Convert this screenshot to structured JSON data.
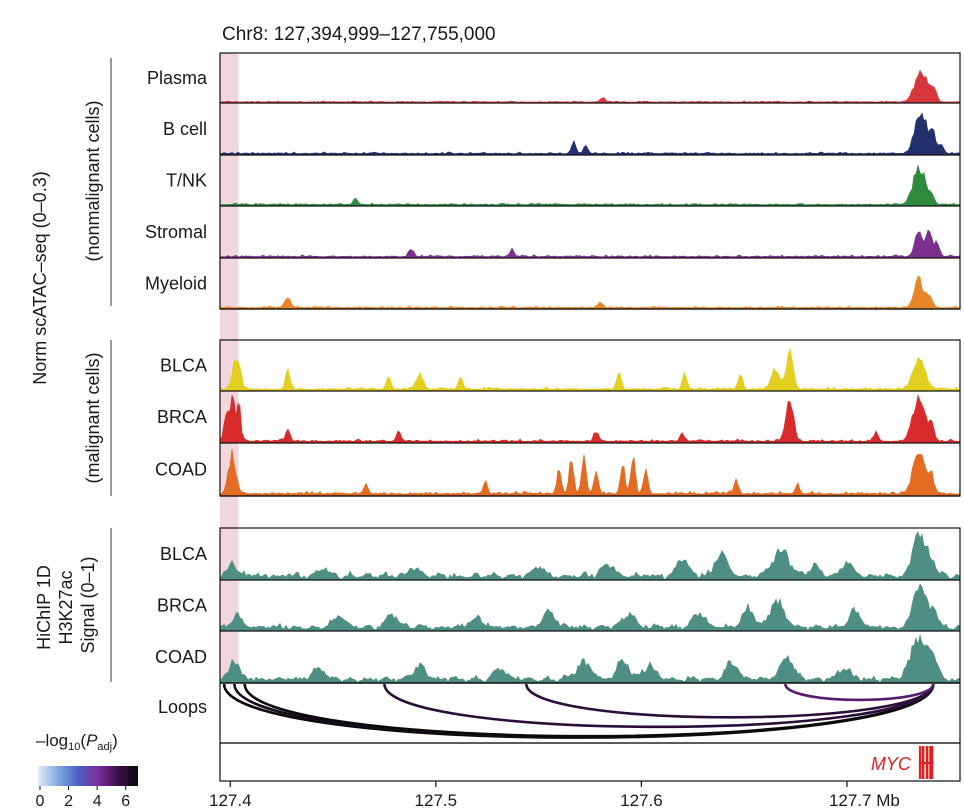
{
  "chart_data": {
    "type": "genome-browser-tracks",
    "title": "Chr8: 127,394,999–127,755,000",
    "region": {
      "chrom": "Chr8",
      "start": 127394999,
      "end": 127755000
    },
    "highlight_region": [
      127394999,
      127404000
    ],
    "x_axis": {
      "ticks": [
        127.4,
        127.5,
        127.6,
        127.7
      ],
      "tick_labels": [
        "127.4",
        "127.5",
        "127.6",
        "127.7 Mb"
      ]
    },
    "groups": [
      {
        "id": "nonmalignant",
        "label": "(nonmalignant cells)"
      },
      {
        "id": "malignant",
        "label": "(malignant cells)"
      },
      {
        "id": "hichip",
        "label_lines": [
          "HiChIP 1D",
          "H3K27ac",
          "Signal (0–1)"
        ]
      }
    ],
    "outer_ylabel": "Norm scATAC–seq (0–0.3)",
    "tracks": [
      {
        "name": "Plasma",
        "group": "nonmalignant",
        "color": "#d7373c",
        "ylim": [
          0,
          0.3
        ],
        "baseline": 0.006,
        "noise": 0.004,
        "peaks": [
          {
            "pos": 127.581,
            "height": 0.03,
            "width": 0.0015
          },
          {
            "pos": 127.736,
            "height": 0.22,
            "width": 0.004
          },
          {
            "pos": 127.742,
            "height": 0.09,
            "width": 0.002
          }
        ]
      },
      {
        "name": "B cell",
        "group": "nonmalignant",
        "color": "#23306e",
        "ylim": [
          0,
          0.3
        ],
        "baseline": 0.008,
        "noise": 0.006,
        "peaks": [
          {
            "pos": 127.567,
            "height": 0.07,
            "width": 0.0015
          },
          {
            "pos": 127.573,
            "height": 0.05,
            "width": 0.0015
          },
          {
            "pos": 127.736,
            "height": 0.25,
            "width": 0.004
          },
          {
            "pos": 127.742,
            "height": 0.12,
            "width": 0.002
          },
          {
            "pos": 127.746,
            "height": 0.05,
            "width": 0.0015
          }
        ]
      },
      {
        "name": "T/NK",
        "group": "nonmalignant",
        "color": "#2e8b3e",
        "ylim": [
          0,
          0.3
        ],
        "baseline": 0.008,
        "noise": 0.006,
        "peaks": [
          {
            "pos": 127.461,
            "height": 0.04,
            "width": 0.0015
          },
          {
            "pos": 127.735,
            "height": 0.24,
            "width": 0.004
          },
          {
            "pos": 127.741,
            "height": 0.06,
            "width": 0.002
          }
        ]
      },
      {
        "name": "Stromal",
        "group": "nonmalignant",
        "color": "#7b2f8e",
        "ylim": [
          0,
          0.3
        ],
        "baseline": 0.008,
        "noise": 0.007,
        "peaks": [
          {
            "pos": 127.488,
            "height": 0.05,
            "width": 0.0015
          },
          {
            "pos": 127.537,
            "height": 0.04,
            "width": 0.0015
          },
          {
            "pos": 127.735,
            "height": 0.18,
            "width": 0.0025
          },
          {
            "pos": 127.74,
            "height": 0.16,
            "width": 0.002
          },
          {
            "pos": 127.744,
            "height": 0.08,
            "width": 0.0015
          }
        ]
      },
      {
        "name": "Myeloid",
        "group": "nonmalignant",
        "color": "#e8872a",
        "ylim": [
          0,
          0.3
        ],
        "baseline": 0.008,
        "noise": 0.006,
        "peaks": [
          {
            "pos": 127.428,
            "height": 0.06,
            "width": 0.002
          },
          {
            "pos": 127.58,
            "height": 0.04,
            "width": 0.0015
          },
          {
            "pos": 127.735,
            "height": 0.19,
            "width": 0.003
          },
          {
            "pos": 127.74,
            "height": 0.08,
            "width": 0.002
          }
        ]
      },
      {
        "name": "BLCA",
        "group": "malignant",
        "color": "#e3cf1f",
        "ylim": [
          0,
          0.3
        ],
        "baseline": 0.01,
        "noise": 0.008,
        "peaks": [
          {
            "pos": 127.403,
            "height": 0.22,
            "width": 0.0025
          },
          {
            "pos": 127.428,
            "height": 0.12,
            "width": 0.0015
          },
          {
            "pos": 127.477,
            "height": 0.08,
            "width": 0.0015
          },
          {
            "pos": 127.492,
            "height": 0.09,
            "width": 0.0025
          },
          {
            "pos": 127.512,
            "height": 0.07,
            "width": 0.0015
          },
          {
            "pos": 127.589,
            "height": 0.12,
            "width": 0.0015
          },
          {
            "pos": 127.621,
            "height": 0.1,
            "width": 0.0015
          },
          {
            "pos": 127.648,
            "height": 0.1,
            "width": 0.0015
          },
          {
            "pos": 127.665,
            "height": 0.13,
            "width": 0.0025
          },
          {
            "pos": 127.672,
            "height": 0.22,
            "width": 0.0025
          },
          {
            "pos": 127.735,
            "height": 0.2,
            "width": 0.004
          }
        ]
      },
      {
        "name": "BRCA",
        "group": "malignant",
        "color": "#d92b2b",
        "ylim": [
          0,
          0.3
        ],
        "baseline": 0.01,
        "noise": 0.008,
        "peaks": [
          {
            "pos": 127.398,
            "height": 0.18,
            "width": 0.0015
          },
          {
            "pos": 127.401,
            "height": 0.26,
            "width": 0.0015
          },
          {
            "pos": 127.404,
            "height": 0.24,
            "width": 0.0015
          },
          {
            "pos": 127.428,
            "height": 0.08,
            "width": 0.0015
          },
          {
            "pos": 127.482,
            "height": 0.06,
            "width": 0.0015
          },
          {
            "pos": 127.578,
            "height": 0.06,
            "width": 0.0015
          },
          {
            "pos": 127.62,
            "height": 0.05,
            "width": 0.0015
          },
          {
            "pos": 127.672,
            "height": 0.28,
            "width": 0.0025
          },
          {
            "pos": 127.714,
            "height": 0.06,
            "width": 0.0015
          },
          {
            "pos": 127.735,
            "height": 0.28,
            "width": 0.004
          },
          {
            "pos": 127.741,
            "height": 0.1,
            "width": 0.002
          }
        ]
      },
      {
        "name": "COAD",
        "group": "malignant",
        "color": "#e36b22",
        "ylim": [
          0,
          0.3
        ],
        "baseline": 0.012,
        "noise": 0.01,
        "peaks": [
          {
            "pos": 127.401,
            "height": 0.24,
            "width": 0.0025
          },
          {
            "pos": 127.466,
            "height": 0.06,
            "width": 0.0015
          },
          {
            "pos": 127.524,
            "height": 0.07,
            "width": 0.0015
          },
          {
            "pos": 127.56,
            "height": 0.16,
            "width": 0.0015
          },
          {
            "pos": 127.566,
            "height": 0.22,
            "width": 0.0015
          },
          {
            "pos": 127.572,
            "height": 0.25,
            "width": 0.0015
          },
          {
            "pos": 127.578,
            "height": 0.13,
            "width": 0.0015
          },
          {
            "pos": 127.591,
            "height": 0.19,
            "width": 0.0015
          },
          {
            "pos": 127.596,
            "height": 0.25,
            "width": 0.0015
          },
          {
            "pos": 127.602,
            "height": 0.15,
            "width": 0.0015
          },
          {
            "pos": 127.646,
            "height": 0.08,
            "width": 0.0015
          },
          {
            "pos": 127.676,
            "height": 0.06,
            "width": 0.0015
          },
          {
            "pos": 127.735,
            "height": 0.25,
            "width": 0.004
          },
          {
            "pos": 127.741,
            "height": 0.1,
            "width": 0.002
          }
        ]
      },
      {
        "name": "BLCA",
        "group": "hichip",
        "color": "#4f8f83",
        "ylim": [
          0,
          1
        ],
        "baseline": 0.06,
        "noise": 0.05,
        "peaks": [
          {
            "pos": 127.401,
            "height": 0.3,
            "width": 0.003
          },
          {
            "pos": 127.445,
            "height": 0.16,
            "width": 0.004
          },
          {
            "pos": 127.49,
            "height": 0.18,
            "width": 0.004
          },
          {
            "pos": 127.55,
            "height": 0.2,
            "width": 0.004
          },
          {
            "pos": 127.584,
            "height": 0.25,
            "width": 0.004
          },
          {
            "pos": 127.62,
            "height": 0.34,
            "width": 0.004
          },
          {
            "pos": 127.639,
            "height": 0.45,
            "width": 0.004
          },
          {
            "pos": 127.668,
            "height": 0.52,
            "width": 0.006
          },
          {
            "pos": 127.684,
            "height": 0.2,
            "width": 0.004
          },
          {
            "pos": 127.7,
            "height": 0.3,
            "width": 0.004
          },
          {
            "pos": 127.735,
            "height": 0.9,
            "width": 0.004
          },
          {
            "pos": 127.741,
            "height": 0.35,
            "width": 0.003
          }
        ]
      },
      {
        "name": "BRCA",
        "group": "hichip",
        "color": "#4f8f83",
        "ylim": [
          0,
          1
        ],
        "baseline": 0.06,
        "noise": 0.05,
        "peaks": [
          {
            "pos": 127.403,
            "height": 0.28,
            "width": 0.003
          },
          {
            "pos": 127.453,
            "height": 0.22,
            "width": 0.004
          },
          {
            "pos": 127.479,
            "height": 0.26,
            "width": 0.004
          },
          {
            "pos": 127.52,
            "height": 0.2,
            "width": 0.004
          },
          {
            "pos": 127.555,
            "height": 0.35,
            "width": 0.004
          },
          {
            "pos": 127.594,
            "height": 0.28,
            "width": 0.004
          },
          {
            "pos": 127.628,
            "height": 0.3,
            "width": 0.004
          },
          {
            "pos": 127.652,
            "height": 0.38,
            "width": 0.004
          },
          {
            "pos": 127.666,
            "height": 0.55,
            "width": 0.005
          },
          {
            "pos": 127.704,
            "height": 0.35,
            "width": 0.004
          },
          {
            "pos": 127.735,
            "height": 0.92,
            "width": 0.004
          },
          {
            "pos": 127.742,
            "height": 0.4,
            "width": 0.003
          }
        ]
      },
      {
        "name": "COAD",
        "group": "hichip",
        "color": "#4f8f83",
        "ylim": [
          0,
          1
        ],
        "baseline": 0.06,
        "noise": 0.05,
        "peaks": [
          {
            "pos": 127.402,
            "height": 0.4,
            "width": 0.003
          },
          {
            "pos": 127.443,
            "height": 0.24,
            "width": 0.004
          },
          {
            "pos": 127.492,
            "height": 0.28,
            "width": 0.004
          },
          {
            "pos": 127.531,
            "height": 0.22,
            "width": 0.004
          },
          {
            "pos": 127.572,
            "height": 0.36,
            "width": 0.005
          },
          {
            "pos": 127.591,
            "height": 0.38,
            "width": 0.004
          },
          {
            "pos": 127.604,
            "height": 0.32,
            "width": 0.004
          },
          {
            "pos": 127.644,
            "height": 0.34,
            "width": 0.004
          },
          {
            "pos": 127.671,
            "height": 0.42,
            "width": 0.005
          },
          {
            "pos": 127.699,
            "height": 0.22,
            "width": 0.004
          },
          {
            "pos": 127.735,
            "height": 0.95,
            "width": 0.005
          },
          {
            "pos": 127.742,
            "height": 0.5,
            "width": 0.003
          }
        ]
      }
    ],
    "loops": {
      "label": "Loops",
      "anchor": 127.742,
      "items": [
        {
          "start": 127.397,
          "neglog10_padj": 7
        },
        {
          "start": 127.402,
          "neglog10_padj": 6.5
        },
        {
          "start": 127.407,
          "neglog10_padj": 7
        },
        {
          "start": 127.475,
          "neglog10_padj": 6
        },
        {
          "start": 127.544,
          "neglog10_padj": 6
        },
        {
          "start": 127.67,
          "neglog10_padj": 5
        }
      ]
    },
    "gene": {
      "name": "MYC",
      "start": 127.735,
      "end": 127.742,
      "color": "#e02020"
    },
    "colorbar": {
      "label_prefix": "–log",
      "label_sub": "10",
      "label_mid": "(P",
      "label_italic": "P",
      "label_sub2": "adj",
      "label_end": ")",
      "ticks": [
        0,
        2,
        4,
        6
      ],
      "tick_labels": [
        "0",
        "2",
        "4",
        "6"
      ],
      "range": [
        0,
        7
      ],
      "colors": [
        "#e6ecf5",
        "#7fa9e0",
        "#4e5fc4",
        "#7a2f9e",
        "#3a0f4a",
        "#0a0a0a"
      ]
    }
  }
}
